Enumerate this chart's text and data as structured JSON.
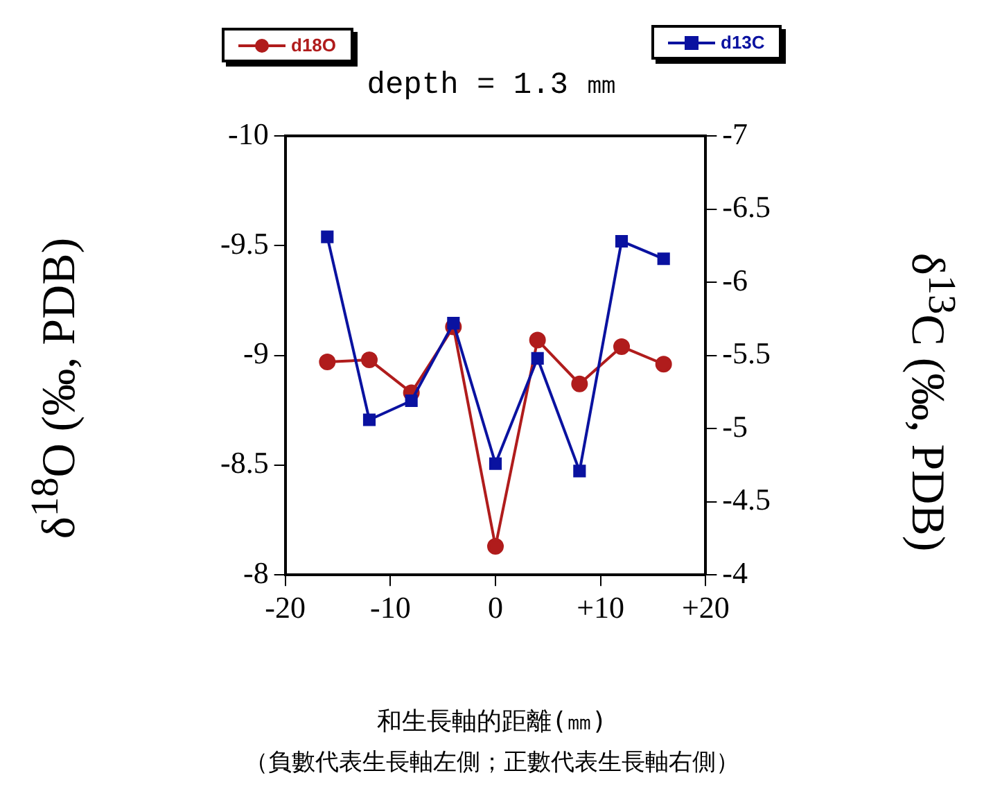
{
  "chart_data": {
    "type": "line",
    "title": "depth = 1.3 ㎜",
    "xlabel": "和生長軸的距離(㎜)",
    "ylabel": "δ$^{18}$O (‰, PDB)",
    "y2label": "δ$^{13}$C (‰, PDB)",
    "annotations": [
      "（負數代表生長軸左側；正數代表生長軸右側）"
    ],
    "x": [
      -16,
      -12,
      -8,
      -4,
      0,
      4,
      8,
      12,
      16
    ],
    "series": [
      {
        "name": "d18O",
        "color": "#b01c1c",
        "marker": "circle",
        "values": [
          -8.97,
          -8.98,
          -8.83,
          -9.13,
          -8.13,
          -9.07,
          -8.87,
          -9.04,
          -8.96
        ]
      },
      {
        "name": "d13C",
        "color": "#0a12a0",
        "marker": "square",
        "axis": "y2",
        "values": [
          -6.31,
          -5.06,
          -5.19,
          -5.72,
          -4.76,
          -5.48,
          -4.71,
          -6.28,
          -6.16
        ]
      }
    ],
    "xlim": [
      -20,
      20
    ],
    "xticks": [
      -20,
      -10,
      0,
      {
        "value": 10,
        "label": "+10"
      },
      {
        "value": 20,
        "label": "+20"
      }
    ],
    "ylim": [
      -8,
      -10
    ],
    "yticks": [
      -10,
      -9.5,
      -9,
      -8.5,
      -8
    ],
    "y2lim": [
      -4,
      -7
    ],
    "y2ticks": [
      -7,
      -6.5,
      -6,
      -5.5,
      -5,
      -4.5,
      -4
    ],
    "grid": false,
    "legend": "top",
    "line_style": "solid"
  }
}
